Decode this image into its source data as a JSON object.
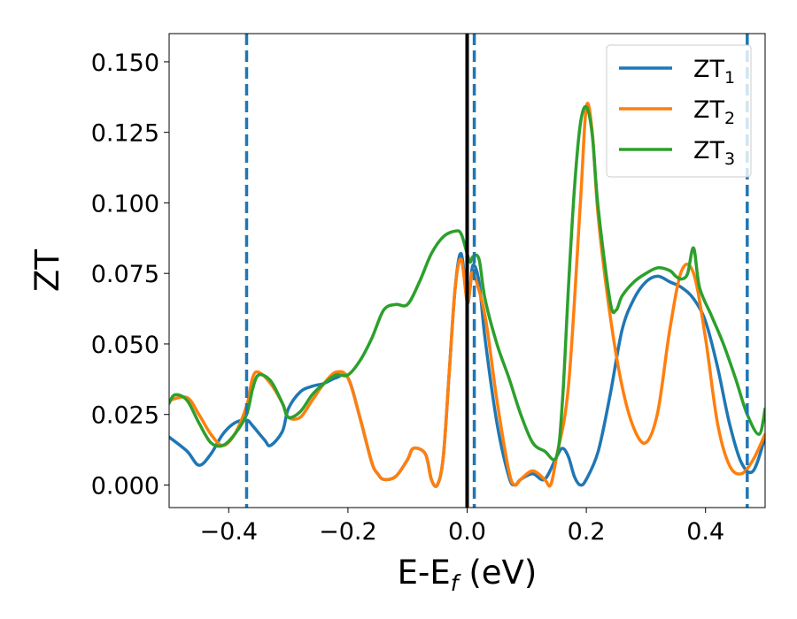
{
  "chart_data": {
    "type": "line",
    "xlabel": "E-E",
    "xlabel_sub": "f",
    "xlabel_unit": " (eV)",
    "ylabel": "ZT",
    "xlim": [
      -0.5,
      0.5
    ],
    "ylim": [
      -0.008,
      0.16
    ],
    "x_ticks": [
      -0.4,
      -0.2,
      0.0,
      0.2,
      0.4
    ],
    "x_tick_labels": [
      "−0.4",
      "−0.2",
      "0.0",
      "0.2",
      "0.4"
    ],
    "y_ticks": [
      0.0,
      0.025,
      0.05,
      0.075,
      0.1,
      0.125,
      0.15
    ],
    "y_tick_labels": [
      "0.000",
      "0.025",
      "0.050",
      "0.075",
      "0.100",
      "0.125",
      "0.150"
    ],
    "grid": false,
    "legend_position": "top-right",
    "reference_lines": [
      {
        "x": 0.0,
        "style": "solid",
        "color": "#000000"
      },
      {
        "x": -0.37,
        "style": "dashed",
        "color": "#1f77b4"
      },
      {
        "x": 0.012,
        "style": "dashed",
        "color": "#1f77b4"
      },
      {
        "x": 0.47,
        "style": "dashed",
        "color": "#1f77b4"
      }
    ],
    "series": [
      {
        "name": "ZT",
        "name_sub": "1",
        "color": "#1f77b4",
        "x": [
          -0.5,
          -0.47,
          -0.45,
          -0.43,
          -0.41,
          -0.39,
          -0.37,
          -0.36,
          -0.34,
          -0.33,
          -0.31,
          -0.3,
          -0.28,
          -0.26,
          -0.24,
          -0.22,
          -0.2,
          -0.18,
          -0.16,
          -0.15,
          -0.14,
          -0.12,
          -0.1,
          -0.09,
          -0.07,
          -0.06,
          -0.05,
          -0.04,
          -0.03,
          -0.02,
          -0.01,
          0.0,
          0.005,
          0.01,
          0.02,
          0.03,
          0.05,
          0.07,
          0.08,
          0.09,
          0.11,
          0.13,
          0.15,
          0.16,
          0.17,
          0.18,
          0.19,
          0.2,
          0.22,
          0.24,
          0.26,
          0.28,
          0.3,
          0.32,
          0.34,
          0.36,
          0.38,
          0.4,
          0.42,
          0.44,
          0.46,
          0.48,
          0.5
        ],
        "y": [
          0.017,
          0.012,
          0.007,
          0.011,
          0.018,
          0.022,
          0.023,
          0.021,
          0.016,
          0.014,
          0.019,
          0.027,
          0.033,
          0.035,
          0.036,
          0.038,
          0.038,
          0.024,
          0.008,
          0.004,
          0.002,
          0.003,
          0.009,
          0.013,
          0.011,
          0.002,
          0.0,
          0.01,
          0.04,
          0.07,
          0.082,
          0.065,
          0.07,
          0.078,
          0.072,
          0.052,
          0.022,
          0.003,
          0.0,
          0.002,
          0.004,
          0.002,
          0.01,
          0.013,
          0.01,
          0.003,
          0.0,
          0.002,
          0.012,
          0.032,
          0.055,
          0.066,
          0.072,
          0.074,
          0.072,
          0.07,
          0.066,
          0.058,
          0.042,
          0.022,
          0.008,
          0.005,
          0.017
        ]
      },
      {
        "name": "ZT",
        "name_sub": "2",
        "color": "#ff7f0e",
        "x": [
          -0.5,
          -0.47,
          -0.45,
          -0.43,
          -0.41,
          -0.39,
          -0.37,
          -0.36,
          -0.35,
          -0.33,
          -0.31,
          -0.3,
          -0.28,
          -0.26,
          -0.24,
          -0.22,
          -0.2,
          -0.18,
          -0.16,
          -0.15,
          -0.14,
          -0.12,
          -0.1,
          -0.09,
          -0.07,
          -0.06,
          -0.05,
          -0.04,
          -0.03,
          -0.02,
          -0.01,
          0.0,
          0.005,
          0.01,
          0.03,
          0.05,
          0.07,
          0.08,
          0.09,
          0.11,
          0.13,
          0.14,
          0.15,
          0.17,
          0.19,
          0.2,
          0.21,
          0.22,
          0.24,
          0.26,
          0.28,
          0.3,
          0.32,
          0.34,
          0.36,
          0.38,
          0.4,
          0.42,
          0.44,
          0.46,
          0.48,
          0.5
        ],
        "y": [
          0.03,
          0.031,
          0.025,
          0.018,
          0.014,
          0.018,
          0.028,
          0.038,
          0.04,
          0.036,
          0.029,
          0.024,
          0.024,
          0.03,
          0.036,
          0.04,
          0.038,
          0.024,
          0.008,
          0.004,
          0.002,
          0.003,
          0.009,
          0.013,
          0.011,
          0.002,
          0.0,
          0.01,
          0.04,
          0.07,
          0.08,
          0.065,
          0.07,
          0.075,
          0.06,
          0.03,
          0.005,
          0.0,
          0.002,
          0.005,
          0.002,
          0.0,
          0.01,
          0.035,
          0.1,
          0.134,
          0.125,
          0.095,
          0.06,
          0.035,
          0.02,
          0.015,
          0.026,
          0.055,
          0.076,
          0.075,
          0.052,
          0.022,
          0.007,
          0.004,
          0.009,
          0.018
        ]
      },
      {
        "name": "ZT",
        "name_sub": "3",
        "color": "#2ca02c",
        "x": [
          -0.5,
          -0.49,
          -0.47,
          -0.45,
          -0.43,
          -0.41,
          -0.39,
          -0.37,
          -0.36,
          -0.35,
          -0.33,
          -0.31,
          -0.3,
          -0.28,
          -0.26,
          -0.24,
          -0.22,
          -0.2,
          -0.18,
          -0.16,
          -0.14,
          -0.12,
          -0.1,
          -0.08,
          -0.06,
          -0.04,
          -0.02,
          -0.01,
          0.0,
          0.005,
          0.01,
          0.02,
          0.03,
          0.05,
          0.07,
          0.09,
          0.11,
          0.13,
          0.15,
          0.16,
          0.17,
          0.18,
          0.19,
          0.2,
          0.21,
          0.22,
          0.24,
          0.25,
          0.26,
          0.28,
          0.3,
          0.32,
          0.34,
          0.35,
          0.36,
          0.37,
          0.38,
          0.39,
          0.41,
          0.43,
          0.45,
          0.47,
          0.49,
          0.5
        ],
        "y": [
          0.029,
          0.032,
          0.03,
          0.022,
          0.015,
          0.014,
          0.018,
          0.025,
          0.034,
          0.039,
          0.037,
          0.029,
          0.024,
          0.026,
          0.032,
          0.036,
          0.039,
          0.039,
          0.044,
          0.052,
          0.062,
          0.064,
          0.064,
          0.072,
          0.082,
          0.088,
          0.09,
          0.089,
          0.082,
          0.079,
          0.081,
          0.08,
          0.066,
          0.05,
          0.038,
          0.025,
          0.015,
          0.012,
          0.01,
          0.03,
          0.07,
          0.105,
          0.128,
          0.134,
          0.124,
          0.098,
          0.065,
          0.062,
          0.067,
          0.072,
          0.075,
          0.077,
          0.076,
          0.074,
          0.073,
          0.075,
          0.084,
          0.07,
          0.06,
          0.05,
          0.038,
          0.025,
          0.018,
          0.027
        ]
      }
    ]
  }
}
